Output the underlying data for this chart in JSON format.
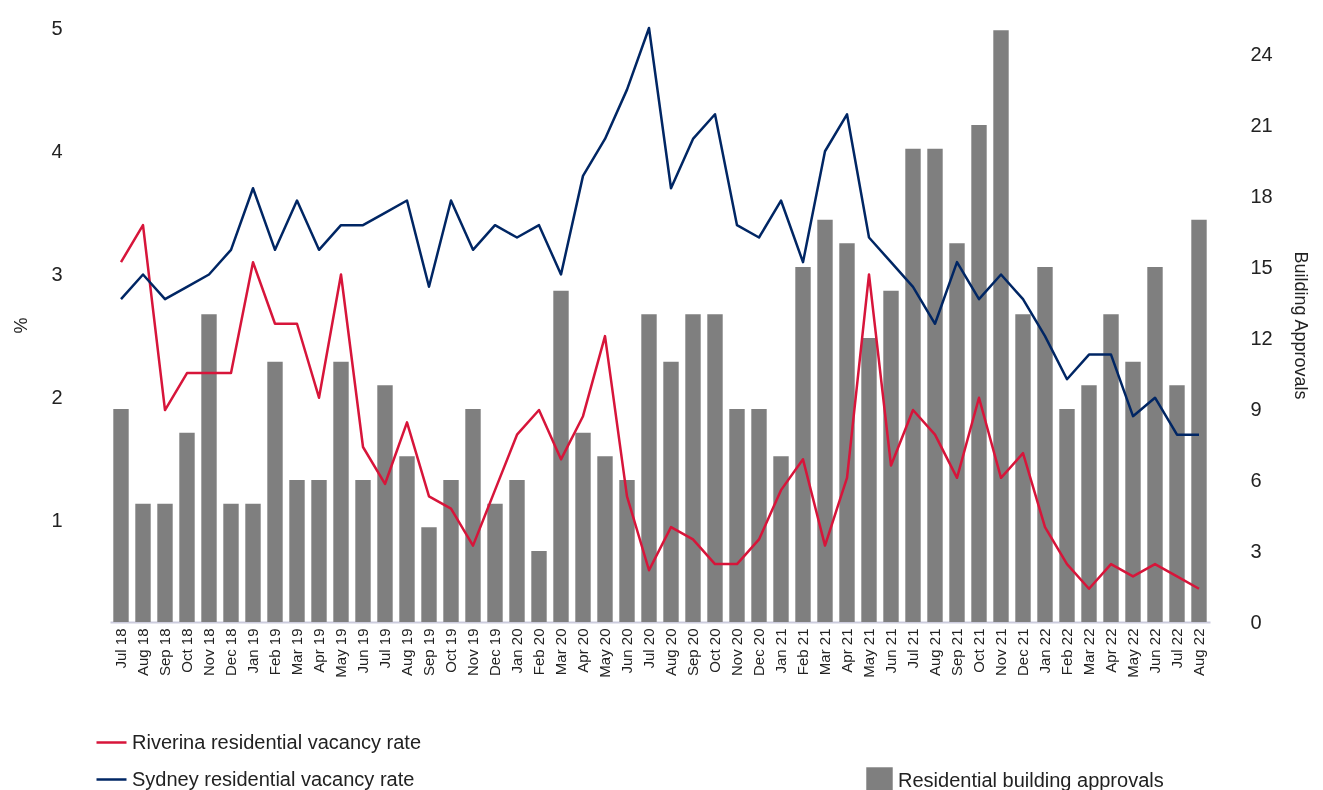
{
  "chart_data": {
    "type": "bar",
    "categories": [
      "Jul 18",
      "Aug 18",
      "Sep 18",
      "Oct 18",
      "Nov 18",
      "Dec 18",
      "Jan 19",
      "Feb 19",
      "Mar 19",
      "Apr 19",
      "May 19",
      "Jun 19",
      "Jul 19",
      "Aug 19",
      "Sep 19",
      "Oct 19",
      "Nov 19",
      "Dec 19",
      "Jan 20",
      "Feb 20",
      "Mar 20",
      "Apr 20",
      "May 20",
      "Jun 20",
      "Jul 20",
      "Aug 20",
      "Sep 20",
      "Oct 20",
      "Nov 20",
      "Dec 20",
      "Jan 21",
      "Feb 21",
      "Mar 21",
      "Apr 21",
      "May 21",
      "Jun 21",
      "Jul 21",
      "Aug 21",
      "Sep 21",
      "Oct 21",
      "Nov 21",
      "Dec 21",
      "Jan 22",
      "Feb 22",
      "Mar 22",
      "Apr 22",
      "May 22",
      "Jun 22",
      "Jul 22",
      "Aug 22"
    ],
    "series": [
      {
        "name": "Residential building approvals",
        "type": "bar",
        "axis": "y2",
        "color": "#7f7f7f",
        "values": [
          9,
          5,
          5,
          8,
          13,
          5,
          5,
          11,
          6,
          6,
          11,
          6,
          10,
          7,
          4,
          6,
          9,
          5,
          6,
          3,
          14,
          8,
          7,
          6,
          13,
          11,
          13,
          13,
          9,
          9,
          7,
          15,
          17,
          16,
          12,
          14,
          20,
          20,
          16,
          21,
          25,
          13,
          15,
          9,
          10,
          13,
          11,
          15,
          10,
          17
        ]
      },
      {
        "name": "Riverina residential vacancy rate",
        "type": "line",
        "color": "#d7153a",
        "values": [
          3.1,
          3.4,
          1.9,
          2.2,
          2.2,
          2.2,
          3.1,
          2.6,
          2.6,
          2.0,
          3.0,
          1.6,
          1.3,
          1.8,
          1.2,
          1.1,
          0.8,
          1.25,
          1.7,
          1.9,
          1.5,
          1.85,
          2.5,
          1.2,
          0.6,
          0.95,
          0.85,
          0.65,
          0.65,
          0.85,
          1.25,
          1.5,
          0.8,
          1.35,
          3.0,
          1.45,
          1.9,
          1.7,
          1.35,
          2.0,
          1.35,
          1.55,
          0.95,
          0.65,
          0.45,
          0.65,
          0.55,
          0.65,
          0.55,
          0.45
        ]
      },
      {
        "name": "Sydney residential vacancy rate",
        "type": "line",
        "color": "#002664",
        "values": [
          2.8,
          3.0,
          2.8,
          2.9,
          3.0,
          3.2,
          3.7,
          3.2,
          3.6,
          3.2,
          3.4,
          3.4,
          3.5,
          3.6,
          2.9,
          3.6,
          3.2,
          3.4,
          3.3,
          3.4,
          3.0,
          3.8,
          4.1,
          4.5,
          5.0,
          3.7,
          4.1,
          4.3,
          3.4,
          3.3,
          3.6,
          3.1,
          4.0,
          4.3,
          3.3,
          3.1,
          2.9,
          2.6,
          3.1,
          2.8,
          3.0,
          2.8,
          2.5,
          2.15,
          2.35,
          2.35,
          1.85,
          2.0,
          1.7,
          1.7
        ]
      }
    ],
    "ylabel": "%",
    "y2label": "Building Approvals",
    "ylim": [
      0.18,
      5
    ],
    "yticks": [
      1,
      2,
      3,
      4,
      5
    ],
    "y2lim": [
      0,
      25.1
    ],
    "y2ticks": [
      0,
      3,
      6,
      9,
      12,
      15,
      18,
      21,
      24
    ],
    "grid": false,
    "legend": "bottom"
  }
}
